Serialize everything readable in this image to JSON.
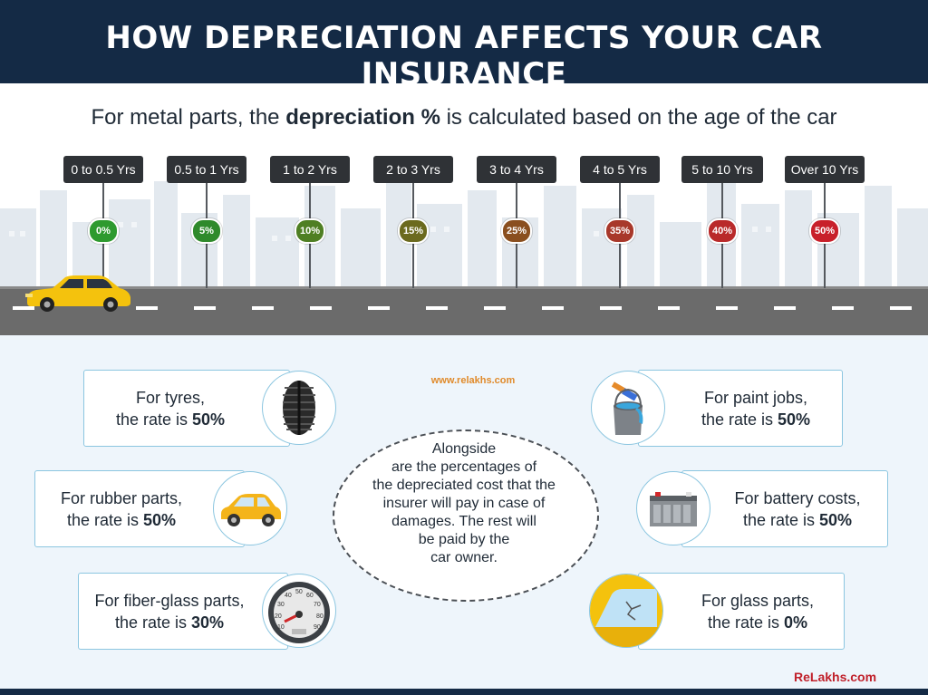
{
  "header": {
    "title": "HOW DEPRECIATION AFFECTS YOUR CAR INSURANCE"
  },
  "subtitle": {
    "before": "For metal parts, the ",
    "bold": "depreciation %",
    "after": " is calculated based on the age of the car"
  },
  "timeline": [
    {
      "age": "0 to 0.5 Yrs",
      "rate": "0%",
      "color": "#2e9a2f"
    },
    {
      "age": "0.5 to 1 Yrs",
      "rate": "5%",
      "color": "#2f8a2b"
    },
    {
      "age": "1 to 2 Yrs",
      "rate": "10%",
      "color": "#4f7f23"
    },
    {
      "age": "2 to 3 Yrs",
      "rate": "15%",
      "color": "#6b6a1e"
    },
    {
      "age": "3 to 4 Yrs",
      "rate": "25%",
      "color": "#8a4f1f"
    },
    {
      "age": "4 to 5 Yrs",
      "rate": "35%",
      "color": "#a8382a"
    },
    {
      "age": "5 to 10 Yrs",
      "rate": "40%",
      "color": "#b92a2a"
    },
    {
      "age": "Over 10 Yrs",
      "rate": "50%",
      "color": "#c8202a"
    }
  ],
  "watermark": "www.relakhs.com",
  "cards": {
    "tyres": {
      "line1": "For tyres,",
      "line2_prefix": "the rate is ",
      "rate": "50%",
      "icon": "tyre-icon"
    },
    "rubber": {
      "line1": "For rubber parts,",
      "line2_prefix": "the rate is ",
      "rate": "50%",
      "icon": "car-icon"
    },
    "fiberglass": {
      "line1": "For fiber-glass parts,",
      "line2_prefix": "the rate is ",
      "rate": "30%",
      "icon": "speedometer-icon"
    },
    "paint": {
      "line1": "For paint jobs,",
      "line2_prefix": "the rate is ",
      "rate": "50%",
      "icon": "paint-bucket-icon"
    },
    "battery": {
      "line1": "For battery costs,",
      "line2_prefix": "the rate is ",
      "rate": "50%",
      "icon": "battery-icon"
    },
    "glass": {
      "line1": "For glass parts,",
      "line2_prefix": "the rate is ",
      "rate": "0%",
      "icon": "broken-glass-icon"
    }
  },
  "center": {
    "lines": [
      "Alongside",
      "are the percentages of",
      "the depreciated cost that the",
      "insurer will pay in case of",
      "damages. The rest will",
      "be paid by the",
      "car owner."
    ]
  },
  "speedometer_ticks": [
    "10",
    "20",
    "30",
    "40",
    "50",
    "60",
    "70",
    "80",
    "90"
  ],
  "brand": "ReLakhs.com",
  "colors": {
    "header": "#142a45",
    "card_border": "#8cc6e0",
    "brand": "#c0202a",
    "watermark": "#e08a2a"
  }
}
